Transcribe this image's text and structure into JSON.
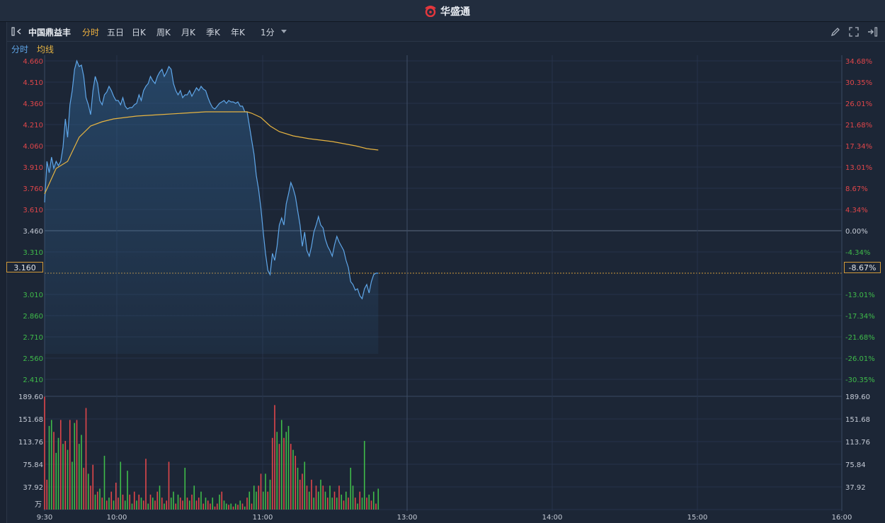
{
  "app": {
    "title": "华盛通"
  },
  "toolbar": {
    "stock_name": "中国鼎益丰",
    "tabs": [
      {
        "label": "分时",
        "active": true
      },
      {
        "label": "五日"
      },
      {
        "label": "日K"
      },
      {
        "label": "周K"
      },
      {
        "label": "月K"
      },
      {
        "label": "季K"
      },
      {
        "label": "年K"
      }
    ],
    "interval": "1分",
    "icons": [
      "pen-icon",
      "expand-icon",
      "exit-icon"
    ]
  },
  "legend": {
    "line1": "分时",
    "line2": "均线"
  },
  "colors": {
    "price_line": "#5fa6e8",
    "avg_line": "#e7b441",
    "up": "#e0464a",
    "down": "#3fbb4a",
    "accent": "#f2b33f"
  },
  "current": {
    "price": "3.160",
    "change_pct": "-8.67%"
  },
  "chart_data": {
    "type": "line",
    "prev_close": 3.46,
    "price_ticks": [
      "4.660",
      "4.510",
      "4.360",
      "4.210",
      "4.060",
      "3.910",
      "3.760",
      "3.610",
      "3.460",
      "3.310",
      "3.160",
      "3.010",
      "2.860",
      "2.710",
      "2.560",
      "2.410"
    ],
    "pct_ticks": [
      "34.68%",
      "30.35%",
      "26.01%",
      "21.68%",
      "17.34%",
      "13.01%",
      "8.67%",
      "4.34%",
      "0.00%",
      "-4.34%",
      "-8.67%",
      "-13.01%",
      "-17.34%",
      "-21.68%",
      "-26.01%",
      "-30.35%"
    ],
    "volume_ticks": [
      "189.60",
      "151.68",
      "113.76",
      "75.84",
      "37.92"
    ],
    "volume_unit": "万",
    "x_ticks": [
      "9:30",
      "10:00",
      "11:00",
      "13:00",
      "14:00",
      "15:00",
      "16:00"
    ],
    "price_series": {
      "name": "分时",
      "points": [
        [
          0,
          3.66
        ],
        [
          1,
          3.95
        ],
        [
          2,
          3.87
        ],
        [
          3,
          3.98
        ],
        [
          4,
          3.9
        ],
        [
          5,
          3.95
        ],
        [
          6,
          3.92
        ],
        [
          7,
          3.95
        ],
        [
          8,
          4.05
        ],
        [
          9,
          4.25
        ],
        [
          10,
          4.12
        ],
        [
          11,
          4.35
        ],
        [
          12,
          4.45
        ],
        [
          13,
          4.6
        ],
        [
          14,
          4.66
        ],
        [
          15,
          4.62
        ],
        [
          16,
          4.63
        ],
        [
          17,
          4.55
        ],
        [
          18,
          4.4
        ],
        [
          19,
          4.35
        ],
        [
          20,
          4.28
        ],
        [
          21,
          4.45
        ],
        [
          22,
          4.55
        ],
        [
          23,
          4.5
        ],
        [
          24,
          4.38
        ],
        [
          25,
          4.35
        ],
        [
          26,
          4.42
        ],
        [
          27,
          4.44
        ],
        [
          28,
          4.48
        ],
        [
          29,
          4.45
        ],
        [
          30,
          4.41
        ],
        [
          31,
          4.38
        ],
        [
          32,
          4.38
        ],
        [
          33,
          4.35
        ],
        [
          34,
          4.4
        ],
        [
          35,
          4.34
        ],
        [
          36,
          4.32
        ],
        [
          37,
          4.33
        ],
        [
          38,
          4.33
        ],
        [
          39,
          4.35
        ],
        [
          40,
          4.36
        ],
        [
          41,
          4.42
        ],
        [
          42,
          4.38
        ],
        [
          43,
          4.45
        ],
        [
          44,
          4.48
        ],
        [
          45,
          4.5
        ],
        [
          46,
          4.55
        ],
        [
          47,
          4.52
        ],
        [
          48,
          4.5
        ],
        [
          49,
          4.55
        ],
        [
          50,
          4.58
        ],
        [
          51,
          4.6
        ],
        [
          52,
          4.55
        ],
        [
          53,
          4.58
        ],
        [
          54,
          4.62
        ],
        [
          55,
          4.6
        ],
        [
          56,
          4.5
        ],
        [
          57,
          4.45
        ],
        [
          58,
          4.42
        ],
        [
          59,
          4.45
        ],
        [
          60,
          4.4
        ],
        [
          61,
          4.42
        ],
        [
          62,
          4.42
        ],
        [
          63,
          4.45
        ],
        [
          64,
          4.41
        ],
        [
          65,
          4.44
        ],
        [
          66,
          4.47
        ],
        [
          67,
          4.45
        ],
        [
          68,
          4.48
        ],
        [
          69,
          4.46
        ],
        [
          70,
          4.45
        ],
        [
          71,
          4.4
        ],
        [
          72,
          4.36
        ],
        [
          73,
          4.33
        ],
        [
          74,
          4.32
        ],
        [
          75,
          4.34
        ],
        [
          76,
          4.36
        ],
        [
          77,
          4.37
        ],
        [
          78,
          4.38
        ],
        [
          79,
          4.36
        ],
        [
          80,
          4.38
        ],
        [
          81,
          4.37
        ],
        [
          82,
          4.37
        ],
        [
          83,
          4.36
        ],
        [
          84,
          4.37
        ],
        [
          85,
          4.34
        ],
        [
          86,
          4.34
        ],
        [
          87,
          4.3
        ],
        [
          88,
          4.3
        ],
        [
          89,
          4.2
        ],
        [
          90,
          4.1
        ],
        [
          91,
          4.0
        ],
        [
          92,
          3.85
        ],
        [
          93,
          3.75
        ],
        [
          94,
          3.62
        ],
        [
          95,
          3.45
        ],
        [
          96,
          3.3
        ],
        [
          97,
          3.18
        ],
        [
          98,
          3.15
        ],
        [
          99,
          3.3
        ],
        [
          100,
          3.25
        ],
        [
          101,
          3.35
        ],
        [
          102,
          3.5
        ],
        [
          103,
          3.55
        ],
        [
          104,
          3.5
        ],
        [
          105,
          3.65
        ],
        [
          106,
          3.72
        ],
        [
          107,
          3.8
        ],
        [
          108,
          3.76
        ],
        [
          109,
          3.7
        ],
        [
          110,
          3.6
        ],
        [
          111,
          3.5
        ],
        [
          112,
          3.35
        ],
        [
          113,
          3.45
        ],
        [
          114,
          3.32
        ],
        [
          115,
          3.28
        ],
        [
          116,
          3.35
        ],
        [
          117,
          3.45
        ],
        [
          118,
          3.5
        ],
        [
          119,
          3.56
        ],
        [
          120,
          3.5
        ],
        [
          121,
          3.48
        ],
        [
          122,
          3.4
        ],
        [
          123,
          3.35
        ],
        [
          124,
          3.32
        ],
        [
          125,
          3.28
        ],
        [
          126,
          3.36
        ],
        [
          127,
          3.42
        ],
        [
          128,
          3.38
        ],
        [
          129,
          3.35
        ],
        [
          130,
          3.32
        ],
        [
          131,
          3.25
        ],
        [
          132,
          3.2
        ],
        [
          133,
          3.1
        ],
        [
          134,
          3.08
        ],
        [
          135,
          3.04
        ],
        [
          136,
          3.05
        ],
        [
          137,
          3.0
        ],
        [
          138,
          2.98
        ],
        [
          139,
          3.05
        ],
        [
          140,
          3.08
        ],
        [
          141,
          3.02
        ],
        [
          142,
          3.1
        ],
        [
          143,
          3.15
        ],
        [
          144,
          3.16
        ],
        [
          145,
          3.16
        ]
      ]
    },
    "avg_series": {
      "name": "均线",
      "points": [
        [
          0,
          3.72
        ],
        [
          5,
          3.9
        ],
        [
          10,
          3.95
        ],
        [
          15,
          4.12
        ],
        [
          20,
          4.2
        ],
        [
          25,
          4.23
        ],
        [
          30,
          4.25
        ],
        [
          40,
          4.27
        ],
        [
          50,
          4.28
        ],
        [
          60,
          4.29
        ],
        [
          70,
          4.3
        ],
        [
          80,
          4.3
        ],
        [
          88,
          4.3
        ],
        [
          90,
          4.29
        ],
        [
          94,
          4.26
        ],
        [
          98,
          4.2
        ],
        [
          102,
          4.16
        ],
        [
          108,
          4.13
        ],
        [
          115,
          4.11
        ],
        [
          125,
          4.09
        ],
        [
          135,
          4.06
        ],
        [
          140,
          4.04
        ],
        [
          145,
          4.03
        ]
      ]
    },
    "volume_series": {
      "name": "volume",
      "points": [
        [
          0,
          189,
          "up"
        ],
        [
          1,
          50,
          "up"
        ],
        [
          2,
          140,
          "down"
        ],
        [
          3,
          150,
          "down"
        ],
        [
          4,
          130,
          "up"
        ],
        [
          5,
          95,
          "down"
        ],
        [
          6,
          120,
          "down"
        ],
        [
          7,
          150,
          "up"
        ],
        [
          8,
          110,
          "down"
        ],
        [
          9,
          115,
          "up"
        ],
        [
          10,
          100,
          "down"
        ],
        [
          11,
          150,
          "up"
        ],
        [
          12,
          80,
          "down"
        ],
        [
          13,
          145,
          "down"
        ],
        [
          14,
          150,
          "up"
        ],
        [
          15,
          110,
          "down"
        ],
        [
          16,
          125,
          "down"
        ],
        [
          17,
          70,
          "up"
        ],
        [
          18,
          170,
          "up"
        ],
        [
          19,
          60,
          "down"
        ],
        [
          20,
          40,
          "up"
        ],
        [
          21,
          75,
          "up"
        ],
        [
          22,
          25,
          "down"
        ],
        [
          23,
          30,
          "up"
        ],
        [
          24,
          35,
          "down"
        ],
        [
          25,
          20,
          "up"
        ],
        [
          26,
          90,
          "down"
        ],
        [
          27,
          15,
          "up"
        ],
        [
          28,
          20,
          "down"
        ],
        [
          29,
          30,
          "up"
        ],
        [
          30,
          15,
          "down"
        ],
        [
          31,
          45,
          "up"
        ],
        [
          32,
          20,
          "up"
        ],
        [
          33,
          80,
          "down"
        ],
        [
          34,
          25,
          "up"
        ],
        [
          35,
          15,
          "down"
        ],
        [
          36,
          65,
          "down"
        ],
        [
          37,
          25,
          "up"
        ],
        [
          38,
          10,
          "down"
        ],
        [
          39,
          30,
          "up"
        ],
        [
          40,
          15,
          "down"
        ],
        [
          41,
          25,
          "up"
        ],
        [
          42,
          20,
          "down"
        ],
        [
          43,
          15,
          "up"
        ],
        [
          44,
          85,
          "up"
        ],
        [
          45,
          10,
          "down"
        ],
        [
          46,
          25,
          "up"
        ],
        [
          47,
          20,
          "down"
        ],
        [
          48,
          15,
          "up"
        ],
        [
          49,
          30,
          "up"
        ],
        [
          50,
          40,
          "down"
        ],
        [
          51,
          20,
          "up"
        ],
        [
          52,
          10,
          "down"
        ],
        [
          53,
          15,
          "up"
        ],
        [
          54,
          80,
          "up"
        ],
        [
          55,
          20,
          "down"
        ],
        [
          56,
          30,
          "down"
        ],
        [
          57,
          10,
          "up"
        ],
        [
          58,
          25,
          "down"
        ],
        [
          59,
          20,
          "up"
        ],
        [
          60,
          15,
          "up"
        ],
        [
          61,
          70,
          "down"
        ],
        [
          62,
          20,
          "up"
        ],
        [
          63,
          15,
          "down"
        ],
        [
          64,
          25,
          "up"
        ],
        [
          65,
          40,
          "down"
        ],
        [
          66,
          15,
          "up"
        ],
        [
          67,
          20,
          "up"
        ],
        [
          68,
          30,
          "down"
        ],
        [
          69,
          10,
          "up"
        ],
        [
          70,
          20,
          "down"
        ],
        [
          71,
          15,
          "up"
        ],
        [
          72,
          10,
          "up"
        ],
        [
          73,
          20,
          "down"
        ],
        [
          74,
          5,
          "up"
        ],
        [
          75,
          10,
          "up"
        ],
        [
          76,
          25,
          "down"
        ],
        [
          77,
          30,
          "up"
        ],
        [
          78,
          15,
          "down"
        ],
        [
          79,
          10,
          "down"
        ],
        [
          80,
          8,
          "up"
        ],
        [
          81,
          10,
          "down"
        ],
        [
          82,
          5,
          "up"
        ],
        [
          83,
          10,
          "down"
        ],
        [
          84,
          8,
          "up"
        ],
        [
          85,
          15,
          "down"
        ],
        [
          86,
          10,
          "up"
        ],
        [
          87,
          5,
          "down"
        ],
        [
          88,
          20,
          "up"
        ],
        [
          89,
          30,
          "down"
        ],
        [
          90,
          10,
          "up"
        ],
        [
          91,
          40,
          "down"
        ],
        [
          92,
          30,
          "down"
        ],
        [
          93,
          40,
          "up"
        ],
        [
          94,
          60,
          "up"
        ],
        [
          95,
          30,
          "down"
        ],
        [
          96,
          60,
          "down"
        ],
        [
          97,
          30,
          "up"
        ],
        [
          98,
          50,
          "down"
        ],
        [
          99,
          120,
          "up"
        ],
        [
          100,
          175,
          "up"
        ],
        [
          101,
          130,
          "down"
        ],
        [
          102,
          110,
          "up"
        ],
        [
          103,
          150,
          "down"
        ],
        [
          104,
          120,
          "up"
        ],
        [
          105,
          130,
          "down"
        ],
        [
          106,
          140,
          "down"
        ],
        [
          107,
          110,
          "up"
        ],
        [
          108,
          100,
          "down"
        ],
        [
          109,
          90,
          "up"
        ],
        [
          110,
          70,
          "down"
        ],
        [
          111,
          50,
          "up"
        ],
        [
          112,
          60,
          "up"
        ],
        [
          113,
          80,
          "down"
        ],
        [
          114,
          40,
          "up"
        ],
        [
          115,
          30,
          "down"
        ],
        [
          116,
          50,
          "up"
        ],
        [
          117,
          20,
          "down"
        ],
        [
          118,
          40,
          "up"
        ],
        [
          119,
          30,
          "down"
        ],
        [
          120,
          50,
          "down"
        ],
        [
          121,
          40,
          "up"
        ],
        [
          122,
          30,
          "down"
        ],
        [
          123,
          20,
          "up"
        ],
        [
          124,
          40,
          "down"
        ],
        [
          125,
          20,
          "down"
        ],
        [
          126,
          30,
          "up"
        ],
        [
          127,
          20,
          "down"
        ],
        [
          128,
          40,
          "up"
        ],
        [
          129,
          25,
          "down"
        ],
        [
          130,
          15,
          "up"
        ],
        [
          131,
          30,
          "down"
        ],
        [
          132,
          20,
          "up"
        ],
        [
          133,
          70,
          "down"
        ],
        [
          134,
          40,
          "down"
        ],
        [
          135,
          20,
          "up"
        ],
        [
          136,
          10,
          "down"
        ],
        [
          137,
          30,
          "up"
        ],
        [
          138,
          20,
          "down"
        ],
        [
          139,
          115,
          "down"
        ],
        [
          140,
          20,
          "up"
        ],
        [
          141,
          25,
          "down"
        ],
        [
          142,
          15,
          "up"
        ],
        [
          143,
          30,
          "down"
        ],
        [
          144,
          10,
          "up"
        ],
        [
          145,
          35,
          "down"
        ]
      ]
    }
  }
}
